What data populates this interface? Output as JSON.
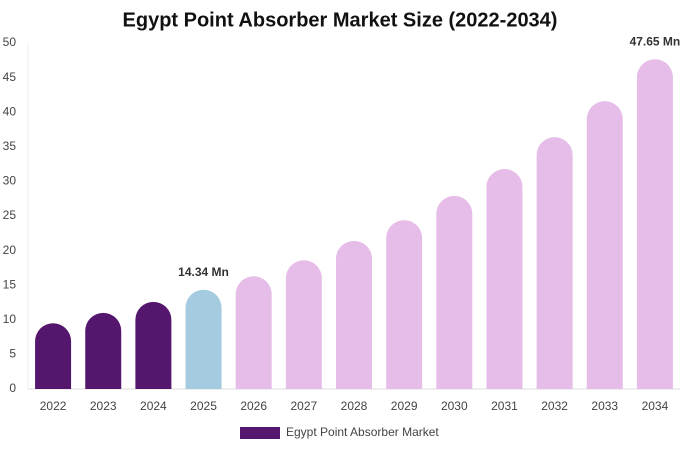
{
  "chart_data": {
    "type": "bar",
    "title": "Egypt Point Absorber Market Size (2022-2034)",
    "categories": [
      "2022",
      "2023",
      "2024",
      "2025",
      "2026",
      "2027",
      "2028",
      "2029",
      "2030",
      "2031",
      "2032",
      "2033",
      "2034"
    ],
    "series": [
      {
        "name": "Egypt Point Absorber Market",
        "color": "#55166e",
        "colors": [
          "#55166e",
          "#55166e",
          "#55166e",
          "#a4cbe0",
          "#e6bde8",
          "#e6bde8",
          "#e6bde8",
          "#e6bde8",
          "#e6bde8",
          "#e6bde8",
          "#e6bde8",
          "#e6bde8",
          "#e6bde8"
        ],
        "values": [
          9.5,
          11.0,
          12.6,
          14.34,
          16.3,
          18.6,
          21.4,
          24.4,
          27.9,
          31.8,
          36.4,
          41.6,
          47.65
        ],
        "value_labels": [
          null,
          null,
          null,
          "14.34 Mn",
          null,
          null,
          null,
          null,
          null,
          null,
          null,
          null,
          "47.65 Mn"
        ]
      }
    ],
    "ylim": [
      0,
      50
    ],
    "yticks": [
      0,
      5,
      10,
      15,
      20,
      25,
      30,
      35,
      40,
      45,
      50
    ],
    "grid": false
  }
}
